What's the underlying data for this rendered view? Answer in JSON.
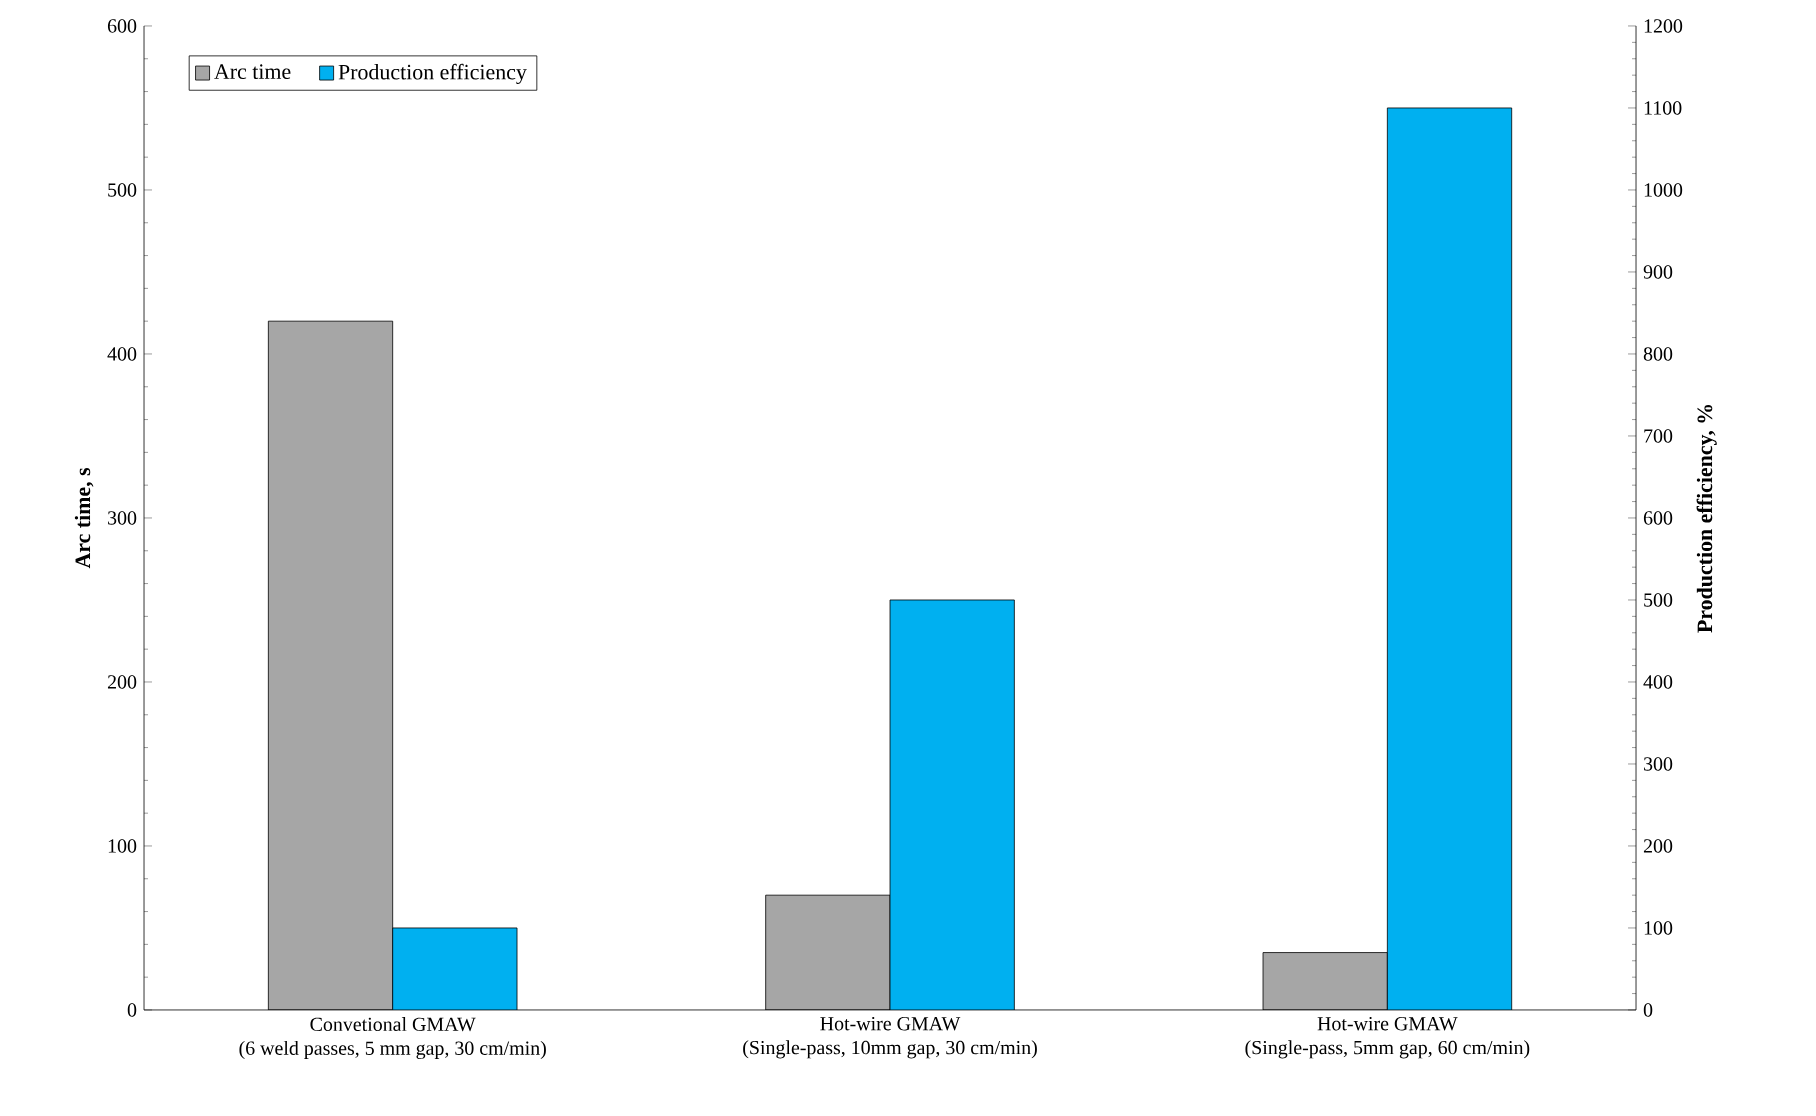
{
  "chart_data": {
    "type": "bar",
    "categories": [
      "Convetional GMAW\n(6 weld passes, 5 mm gap, 30 cm/min)",
      "Hot-wire GMAW\n(Single-pass, 10mm gap, 30 cm/min)",
      "Hot-wire GMAW\n(Single-pass, 5mm gap, 60 cm/min)"
    ],
    "series": [
      {
        "name": "Arc time",
        "color": "#a6a6a6",
        "values": [
          420,
          70,
          35
        ]
      },
      {
        "name": "Production efficiency",
        "color": "#00b0f0",
        "values": [
          100,
          500,
          1100
        ],
        "axis": "y2"
      }
    ],
    "ylabel": "Arc time, s",
    "y2label": "Production efficiency, %",
    "ylim": [
      0,
      600
    ],
    "yticks": [
      0,
      100,
      200,
      300,
      400,
      500,
      600
    ],
    "y2lim": [
      0,
      1200
    ],
    "y2ticks": [
      0,
      100,
      200,
      300,
      400,
      500,
      600,
      700,
      800,
      900,
      1000,
      1100,
      1200
    ],
    "legend": "top left"
  }
}
